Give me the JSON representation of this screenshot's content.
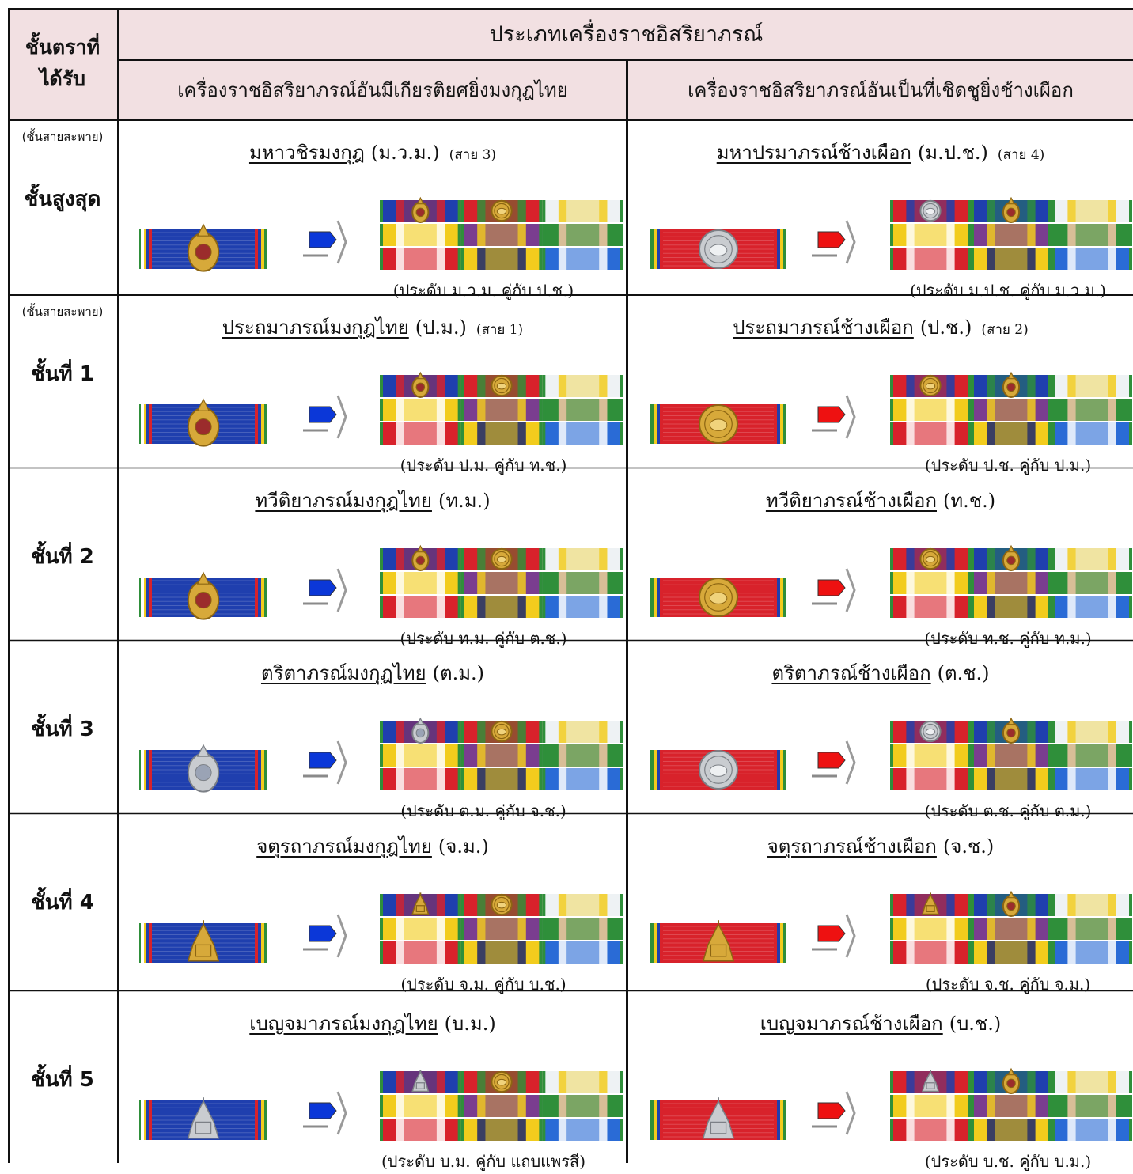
{
  "header": {
    "rank_header": "ชั้นตราที่\nได้รับ",
    "main_title": "ประเภทเครื่องราชอิสริยาภรณ์",
    "col_left": "เครื่องราชอิสริยาภรณ์อันมีเกียรติยศยิ่งมงกุฎไทย",
    "col_right": "เครื่องราชอิสริยาภรณ์อันเป็นที่เชิดชูยิ่งช้างเผือก"
  },
  "colors": {
    "header_bg": "#f2e0e2",
    "grid": "#111111",
    "blue": "#1f3fae",
    "red": "#d8222b",
    "green": "#2f8f3a",
    "yellow": "#f2cc1d"
  },
  "rows": [
    {
      "rank_note": "(ชั้นสายสะพาย)",
      "rank": "ชั้นสูงสุด",
      "left": {
        "name": "มหาวชิรมงกุฎ",
        "abbr": "(ม.ว.ม.)",
        "sash": "(สาย 3)",
        "caption": "(ประดับ ม.ว.ม. คู่กับ ป.ช.)",
        "emblem": "crown-medallion-icon"
      },
      "right": {
        "name": "มหาปรมาภรณ์ช้างเผือก",
        "abbr": "(ม.ป.ช.)",
        "sash": "(สาย 4)",
        "caption": "(ประดับ ม.ป.ช. คู่กับ ม.ว.ม.)",
        "emblem": "white-elephant-icon"
      }
    },
    {
      "rank_note": "(ชั้นสายสะพาย)",
      "rank": "ชั้นที่ 1",
      "left": {
        "name": "ประถมาภรณ์มงกุฎไทย",
        "abbr": "(ป.ม.)",
        "sash": "(สาย 1)",
        "caption": "(ประดับ ป.ม. คู่กับ ท.ช.)",
        "emblem": "crown-medallion-icon"
      },
      "right": {
        "name": "ประถมาภรณ์ช้างเผือก",
        "abbr": "(ป.ช.)",
        "sash": "(สาย 2)",
        "caption": "(ประดับ ป.ช. คู่กับ ป.ม.)",
        "emblem": "elephant-medallion-icon"
      }
    },
    {
      "rank_note": "",
      "rank": "ชั้นที่ 2",
      "left": {
        "name": "ทวีติยาภรณ์มงกุฎไทย",
        "abbr": "(ท.ม.)",
        "sash": "",
        "caption": "(ประดับ ท.ม. คู่กับ ต.ช.)",
        "emblem": "crown-medallion-icon"
      },
      "right": {
        "name": "ทวีติยาภรณ์ช้างเผือก",
        "abbr": "(ท.ช.)",
        "sash": "",
        "caption": "(ประดับ ท.ช. คู่กับ ท.ม.)",
        "emblem": "elephant-medallion-icon"
      }
    },
    {
      "rank_note": "",
      "rank": "ชั้นที่ 3",
      "left": {
        "name": "ตริตาภรณ์มงกุฎไทย",
        "abbr": "(ต.ม.)",
        "sash": "",
        "caption": "(ประดับ ต.ม. คู่กับ จ.ช.)",
        "emblem": "silver-crown-medallion-icon"
      },
      "right": {
        "name": "ตริตาภรณ์ช้างเผือก",
        "abbr": "(ต.ช.)",
        "sash": "",
        "caption": "(ประดับ ต.ช. คู่กับ ต.ม.)",
        "emblem": "silver-elephant-medallion-icon"
      }
    },
    {
      "rank_note": "",
      "rank": "ชั้นที่ 4",
      "left": {
        "name": "จตุรถาภรณ์มงกุฎไทย",
        "abbr": "(จ.ม.)",
        "sash": "",
        "caption": "(ประดับ จ.ม. คู่กับ บ.ช.)",
        "emblem": "crown-pavilion-icon"
      },
      "right": {
        "name": "จตุรถาภรณ์ช้างเผือก",
        "abbr": "(จ.ช.)",
        "sash": "",
        "caption": "(ประดับ จ.ช. คู่กับ จ.ม.)",
        "emblem": "elephant-pavilion-icon"
      }
    },
    {
      "rank_note": "",
      "rank": "ชั้นที่ 5",
      "left": {
        "name": "เบญจมาภรณ์มงกุฎไทย",
        "abbr": "(บ.ม.)",
        "sash": "",
        "caption": "(ประดับ บ.ม. คู่กับ แถบแพรสี)",
        "emblem": "silver-crown-pavilion-icon"
      },
      "right": {
        "name": "เบญจมาภรณ์ช้างเผือก",
        "abbr": "(บ.ช.)",
        "sash": "",
        "caption": "(ประดับ บ.ช. คู่กับ บ.ม.)",
        "emblem": "silver-elephant-pavilion-icon"
      }
    }
  ]
}
